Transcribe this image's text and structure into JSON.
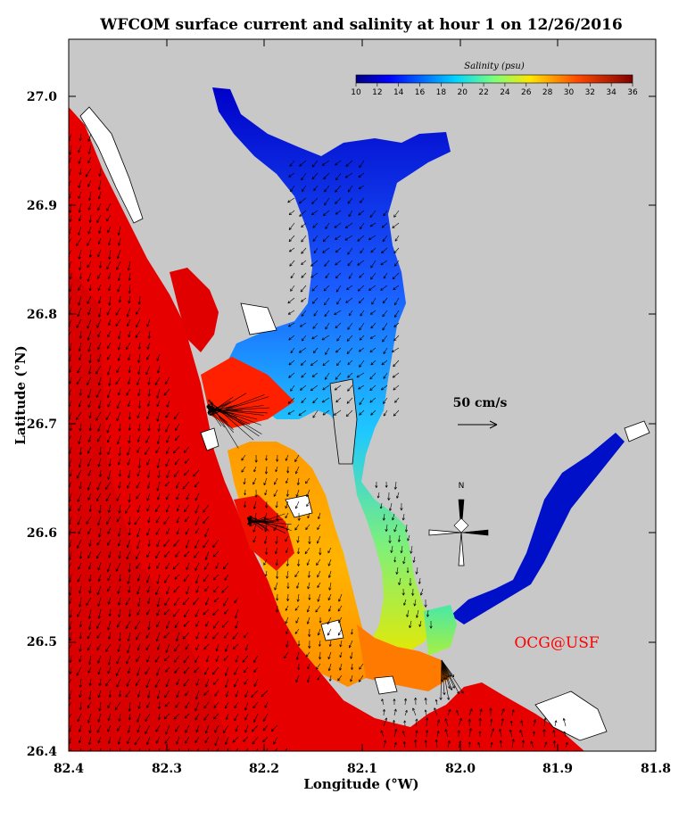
{
  "title": "WFCOM surface current and salinity at hour 1 on 12/26/2016",
  "x_axis": {
    "label": "Longitude (°W)",
    "ticks": [
      "82.4",
      "82.3",
      "82.2",
      "82.1",
      "82.0",
      "81.9",
      "81.8"
    ],
    "range": [
      82.4,
      81.8
    ]
  },
  "y_axis": {
    "label": "Latitude (°N)",
    "ticks": [
      "26.4",
      "26.5",
      "26.6",
      "26.7",
      "26.8",
      "26.9",
      "27.0"
    ],
    "range": [
      26.4,
      27.05
    ]
  },
  "colorbar": {
    "title": "Salinity (psu)",
    "ticks": [
      "10",
      "12",
      "14",
      "16",
      "18",
      "20",
      "22",
      "24",
      "26",
      "28",
      "30",
      "32",
      "34",
      "36"
    ],
    "range": [
      10,
      36
    ]
  },
  "scale_vector": {
    "label": "50 cm/s"
  },
  "compass": {
    "north_label": "N"
  },
  "credit": "OCG@USF",
  "colors": {
    "land": "#c8c8c8",
    "gulf_salinity": "#e00000",
    "credit": "#ff0000"
  }
}
